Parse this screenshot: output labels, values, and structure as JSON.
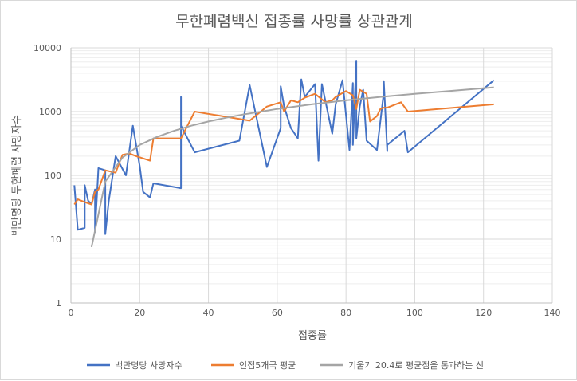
{
  "chart_data": {
    "type": "line",
    "title": "무한폐렴백신 접종률 사망률 상관관계",
    "xlabel": "접종률",
    "ylabel": "백만명당 무한폐렴 사망자수",
    "xlim": [
      0,
      140
    ],
    "ylim": [
      1,
      10000
    ],
    "yscale": "log",
    "xticks": [
      0,
      20,
      40,
      60,
      80,
      100,
      120,
      140
    ],
    "xtick_labels": [
      "0",
      "20",
      "40",
      "60",
      "80",
      "100",
      "120",
      "140"
    ],
    "yticks": [
      1,
      10,
      100,
      1000,
      10000
    ],
    "ytick_labels": [
      "1",
      "10",
      "100",
      "1000",
      "10000"
    ],
    "grid": true,
    "legend_position": "bottom",
    "series": [
      {
        "name": "백만명당 사망자수",
        "color": "#4472c4",
        "x": [
          1,
          2,
          4,
          4,
          5,
          6,
          7,
          7,
          8,
          10,
          10,
          11,
          13,
          16,
          18,
          20,
          21,
          23,
          24,
          32,
          32,
          32,
          36,
          49,
          52,
          57,
          61,
          61,
          62,
          64,
          66,
          67,
          68,
          71,
          72,
          73,
          76,
          77,
          79,
          81,
          82,
          82,
          83,
          83,
          84,
          85,
          86,
          89,
          91,
          91,
          92,
          92,
          97,
          98,
          123
        ],
        "y": [
          70,
          14,
          15,
          70,
          40,
          35,
          60,
          13,
          130,
          120,
          12,
          40,
          200,
          100,
          600,
          140,
          55,
          45,
          75,
          63,
          1700,
          600,
          230,
          350,
          2600,
          135,
          550,
          2500,
          1200,
          550,
          380,
          3200,
          1700,
          2700,
          170,
          2700,
          450,
          1300,
          3100,
          250,
          2800,
          300,
          6300,
          380,
          1200,
          2200,
          350,
          250,
          2000,
          3000,
          240,
          300,
          500,
          230,
          3100
        ]
      },
      {
        "name": "인접5개국 평균",
        "color": "#ed7d31",
        "x": [
          1,
          2,
          4,
          6,
          7,
          8,
          10,
          13,
          15,
          17,
          19,
          23,
          24,
          32,
          36,
          52,
          57,
          61,
          62,
          64,
          66,
          68,
          71,
          74,
          76,
          77,
          80,
          82,
          83,
          84,
          86,
          87,
          89,
          90,
          91,
          92,
          96,
          98,
          123
        ],
        "y": [
          35,
          42,
          38,
          35,
          55,
          60,
          120,
          110,
          210,
          220,
          200,
          170,
          380,
          380,
          1000,
          720,
          1200,
          1400,
          1000,
          1500,
          1400,
          1650,
          1900,
          1400,
          1500,
          1700,
          2100,
          1800,
          1100,
          2200,
          1900,
          700,
          850,
          1100,
          1150,
          1150,
          1400,
          1000,
          1300
        ]
      },
      {
        "name": "기울기 20.4로 평균점을 통과하는 선",
        "color": "#a5a5a5",
        "x": [
          6,
          10,
          15,
          20,
          25,
          30,
          35,
          40,
          45,
          50,
          60,
          70,
          80,
          90,
          100,
          110,
          123
        ],
        "y": [
          7.5,
          80,
          190,
          300,
          400,
          500,
          600,
          700,
          800,
          900,
          1100,
          1300,
          1500,
          1700,
          1900,
          2100,
          2400
        ]
      }
    ]
  }
}
